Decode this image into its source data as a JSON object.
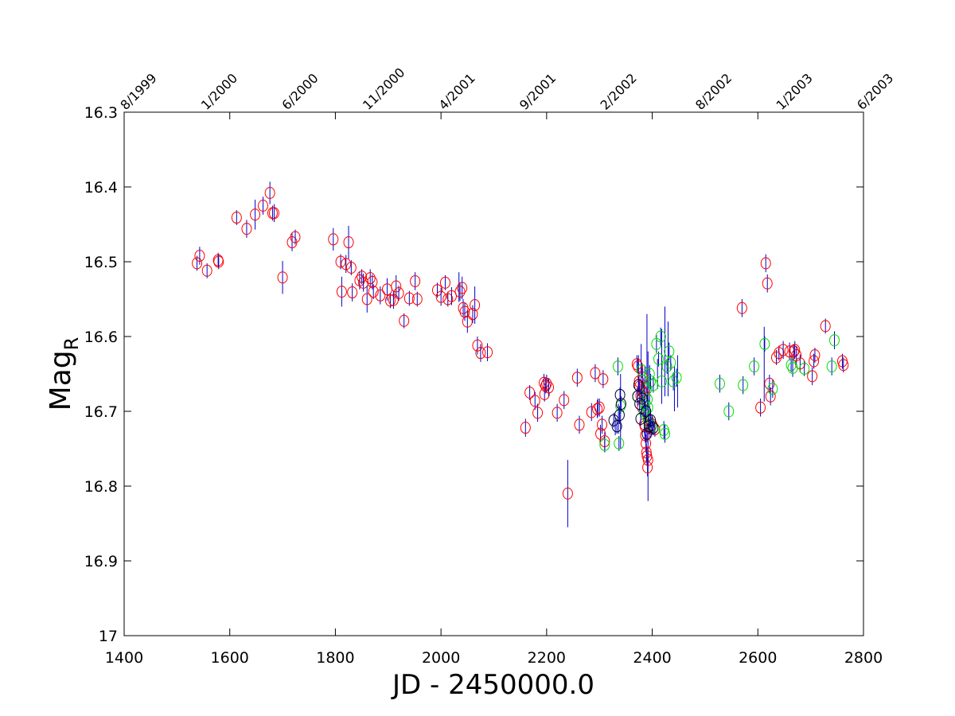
{
  "chart_data": {
    "type": "scatter",
    "title": "",
    "xlabel": "JD - 2450000.0",
    "ylabel_main": "Mag",
    "ylabel_sub": "R",
    "xlim": [
      1400,
      2800
    ],
    "ylim": [
      16.3,
      17
    ],
    "y_inverted": true,
    "grid": false,
    "x_ticks": [
      1400,
      1600,
      1800,
      2000,
      2200,
      2400,
      2600,
      2800
    ],
    "x_tick_labels": [
      "1400",
      "1600",
      "1800",
      "2000",
      "2200",
      "2400",
      "2600",
      "2800"
    ],
    "y_ticks": [
      16.3,
      16.4,
      16.5,
      16.6,
      16.7,
      16.8,
      16.9,
      17
    ],
    "y_tick_labels": [
      "16.3",
      "16.4",
      "16.5",
      "16.6",
      "16.7",
      "16.8",
      "16.9",
      "17"
    ],
    "top_axis": {
      "ticks": [
        1400,
        1553,
        1706,
        1859,
        2003,
        2156,
        2309,
        2489,
        2642,
        2795
      ],
      "labels": [
        "8/1999",
        "1/2000",
        "6/2000",
        "11/2000",
        "4/2001",
        "9/2001",
        "2/2002",
        "8/2002",
        "1/2003",
        "6/2003"
      ]
    },
    "colors": {
      "red": "#ff0000",
      "green": "#00dd00",
      "blue": "#0000cc",
      "black": "#000033"
    },
    "series": [
      {
        "color": "red",
        "points": [
          [
            1538,
            16.502,
            0.01
          ],
          [
            1543,
            16.492,
            0.012
          ],
          [
            1557,
            16.512,
            0.01
          ],
          [
            1578,
            16.498,
            0.01
          ],
          [
            1579,
            16.5,
            0.01
          ],
          [
            1613,
            16.441,
            0.01
          ],
          [
            1632,
            16.456,
            0.012
          ],
          [
            1648,
            16.437,
            0.02
          ],
          [
            1663,
            16.425,
            0.012
          ],
          [
            1676,
            16.408,
            0.015
          ],
          [
            1681,
            16.435,
            0.01
          ],
          [
            1684,
            16.435,
            0.012
          ],
          [
            1700,
            16.521,
            0.022
          ],
          [
            1718,
            16.474,
            0.012
          ],
          [
            1724,
            16.467,
            0.01
          ],
          [
            1796,
            16.47,
            0.015
          ],
          [
            1810,
            16.5,
            0.01
          ],
          [
            1812,
            16.54,
            0.02
          ],
          [
            1820,
            16.503,
            0.012
          ],
          [
            1825,
            16.474,
            0.022
          ],
          [
            1830,
            16.508,
            0.01
          ],
          [
            1832,
            16.541,
            0.012
          ],
          [
            1846,
            16.525,
            0.012
          ],
          [
            1850,
            16.52,
            0.01
          ],
          [
            1853,
            16.528,
            0.012
          ],
          [
            1860,
            16.55,
            0.018
          ],
          [
            1866,
            16.522,
            0.012
          ],
          [
            1870,
            16.527,
            0.01
          ],
          [
            1872,
            16.54,
            0.01
          ],
          [
            1885,
            16.545,
            0.012
          ],
          [
            1898,
            16.537,
            0.015
          ],
          [
            1904,
            16.552,
            0.01
          ],
          [
            1910,
            16.551,
            0.012
          ],
          [
            1915,
            16.533,
            0.015
          ],
          [
            1920,
            16.542,
            0.01
          ],
          [
            1930,
            16.579,
            0.01
          ],
          [
            1940,
            16.549,
            0.01
          ],
          [
            1951,
            16.526,
            0.012
          ],
          [
            1955,
            16.55,
            0.01
          ],
          [
            1993,
            16.538,
            0.01
          ],
          [
            2000,
            16.547,
            0.012
          ],
          [
            2008,
            16.528,
            0.01
          ],
          [
            2013,
            16.55,
            0.01
          ],
          [
            2020,
            16.546,
            0.012
          ],
          [
            2036,
            16.54,
            0.012
          ],
          [
            2040,
            16.535,
            0.015
          ],
          [
            2042,
            16.562,
            0.012
          ],
          [
            2045,
            16.567,
            0.012
          ],
          [
            2050,
            16.58,
            0.015
          ],
          [
            2060,
            16.57,
            0.012
          ],
          [
            2064,
            16.558,
            0.025
          ],
          [
            2069,
            16.612,
            0.012
          ],
          [
            2075,
            16.622,
            0.012
          ],
          [
            2088,
            16.621,
            0.012
          ],
          [
            2160,
            16.722,
            0.012
          ],
          [
            2168,
            16.675,
            0.01
          ],
          [
            2178,
            16.686,
            0.012
          ],
          [
            2183,
            16.702,
            0.012
          ],
          [
            2195,
            16.662,
            0.012
          ],
          [
            2196,
            16.677,
            0.01
          ],
          [
            2198,
            16.666,
            0.01
          ],
          [
            2200,
            16.663,
            0.012
          ],
          [
            2204,
            16.668,
            0.012
          ],
          [
            2220,
            16.702,
            0.012
          ],
          [
            2233,
            16.685,
            0.012
          ],
          [
            2240,
            16.81,
            0.045
          ],
          [
            2258,
            16.655,
            0.012
          ],
          [
            2262,
            16.718,
            0.012
          ],
          [
            2285,
            16.701,
            0.012
          ],
          [
            2292,
            16.649,
            0.012
          ],
          [
            2296,
            16.697,
            0.012
          ],
          [
            2300,
            16.695,
            0.012
          ],
          [
            2302,
            16.73,
            0.012
          ],
          [
            2305,
            16.718,
            0.012
          ],
          [
            2307,
            16.657,
            0.012
          ],
          [
            2310,
            16.74,
            0.012
          ],
          [
            2371,
            16.637,
            0.012
          ],
          [
            2373,
            16.64,
            0.01
          ],
          [
            2375,
            16.66,
            0.012
          ],
          [
            2376,
            16.667,
            0.01
          ],
          [
            2378,
            16.679,
            0.01
          ],
          [
            2380,
            16.672,
            0.012
          ],
          [
            2381,
            16.695,
            0.01
          ],
          [
            2382,
            16.655,
            0.012
          ],
          [
            2384,
            16.676,
            0.01
          ],
          [
            2385,
            16.717,
            0.012
          ],
          [
            2386,
            16.72,
            0.012
          ],
          [
            2387,
            16.732,
            0.01
          ],
          [
            2388,
            16.743,
            0.012
          ],
          [
            2389,
            16.755,
            0.012
          ],
          [
            2390,
            16.76,
            0.012
          ],
          [
            2391,
            16.775,
            0.012
          ],
          [
            2392,
            16.765,
            0.01
          ],
          [
            2393,
            16.712,
            0.012
          ],
          [
            2396,
            16.723,
            0.012
          ],
          [
            2400,
            16.718,
            0.012
          ],
          [
            2405,
            16.724,
            0.01
          ],
          [
            2570,
            16.562,
            0.012
          ],
          [
            2605,
            16.695,
            0.012
          ],
          [
            2615,
            16.502,
            0.012
          ],
          [
            2618,
            16.529,
            0.012
          ],
          [
            2622,
            16.663,
            0.012
          ],
          [
            2624,
            16.68,
            0.012
          ],
          [
            2635,
            16.628,
            0.01
          ],
          [
            2640,
            16.622,
            0.01
          ],
          [
            2648,
            16.618,
            0.012
          ],
          [
            2660,
            16.62,
            0.012
          ],
          [
            2668,
            16.62,
            0.01
          ],
          [
            2670,
            16.618,
            0.012
          ],
          [
            2673,
            16.625,
            0.012
          ],
          [
            2680,
            16.636,
            0.012
          ],
          [
            2703,
            16.653,
            0.012
          ],
          [
            2706,
            16.633,
            0.01
          ],
          [
            2708,
            16.625,
            0.01
          ],
          [
            2728,
            16.586,
            0.01
          ],
          [
            2760,
            16.633,
            0.01
          ],
          [
            2762,
            16.638,
            0.01
          ]
        ]
      },
      {
        "color": "green",
        "points": [
          [
            2310,
            16.745,
            0.01
          ],
          [
            2335,
            16.64,
            0.012
          ],
          [
            2337,
            16.743,
            0.01
          ],
          [
            2340,
            16.693,
            0.01
          ],
          [
            2372,
            16.68,
            0.012
          ],
          [
            2380,
            16.645,
            0.01
          ],
          [
            2384,
            16.7,
            0.012
          ],
          [
            2386,
            16.69,
            0.01
          ],
          [
            2388,
            16.705,
            0.01
          ],
          [
            2390,
            16.67,
            0.012
          ],
          [
            2391,
            16.684,
            0.01
          ],
          [
            2392,
            16.695,
            0.012
          ],
          [
            2393,
            16.715,
            0.01
          ],
          [
            2395,
            16.65,
            0.012
          ],
          [
            2397,
            16.66,
            0.01
          ],
          [
            2399,
            16.72,
            0.012
          ],
          [
            2402,
            16.665,
            0.01
          ],
          [
            2408,
            16.61,
            0.012
          ],
          [
            2412,
            16.63,
            0.01
          ],
          [
            2416,
            16.6,
            0.012
          ],
          [
            2418,
            16.66,
            0.01
          ],
          [
            2422,
            16.725,
            0.012
          ],
          [
            2424,
            16.73,
            0.012
          ],
          [
            2428,
            16.64,
            0.01
          ],
          [
            2432,
            16.62,
            0.012
          ],
          [
            2435,
            16.635,
            0.01
          ],
          [
            2440,
            16.66,
            0.012
          ],
          [
            2446,
            16.655,
            0.012
          ],
          [
            2528,
            16.663,
            0.012
          ],
          [
            2545,
            16.7,
            0.012
          ],
          [
            2572,
            16.665,
            0.012
          ],
          [
            2593,
            16.64,
            0.012
          ],
          [
            2613,
            16.61,
            0.01
          ],
          [
            2628,
            16.67,
            0.012
          ],
          [
            2663,
            16.638,
            0.01
          ],
          [
            2666,
            16.642,
            0.012
          ],
          [
            2688,
            16.643,
            0.01
          ],
          [
            2740,
            16.64,
            0.012
          ],
          [
            2745,
            16.605,
            0.012
          ]
        ]
      },
      {
        "color": "blue",
        "points": [
          [
            2034,
            16.534,
            0.02
          ],
          [
            2297,
            16.695,
            0.012
          ],
          [
            2330,
            16.72,
            0.012
          ],
          [
            2336,
            16.71,
            0.02
          ],
          [
            2340,
            16.7,
            0.05
          ],
          [
            2374,
            16.65,
            0.025
          ],
          [
            2379,
            16.64,
            0.03
          ],
          [
            2386,
            16.69,
            0.05
          ],
          [
            2390,
            16.62,
            0.05
          ],
          [
            2392,
            16.72,
            0.1
          ],
          [
            2395,
            16.68,
            0.04
          ],
          [
            2410,
            16.65,
            0.02
          ],
          [
            2418,
            16.64,
            0.05
          ],
          [
            2424,
            16.62,
            0.06
          ],
          [
            2430,
            16.63,
            0.05
          ],
          [
            2442,
            16.67,
            0.03
          ],
          [
            2448,
            16.66,
            0.035
          ],
          [
            2612,
            16.637,
            0.05
          ]
        ]
      },
      {
        "color": "black",
        "points": [
          [
            2327,
            16.712,
            0.01
          ],
          [
            2333,
            16.72,
            0.01
          ],
          [
            2338,
            16.705,
            0.012
          ],
          [
            2339,
            16.678,
            0.01
          ],
          [
            2341,
            16.69,
            0.01
          ],
          [
            2372,
            16.68,
            0.012
          ],
          [
            2374,
            16.665,
            0.01
          ],
          [
            2376,
            16.69,
            0.01
          ],
          [
            2378,
            16.71,
            0.01
          ],
          [
            2381,
            16.683,
            0.01
          ],
          [
            2388,
            16.7,
            0.01
          ],
          [
            2390,
            16.73,
            0.012
          ],
          [
            2394,
            16.72,
            0.01
          ],
          [
            2397,
            16.712,
            0.01
          ],
          [
            2402,
            16.722,
            0.01
          ]
        ]
      }
    ]
  }
}
